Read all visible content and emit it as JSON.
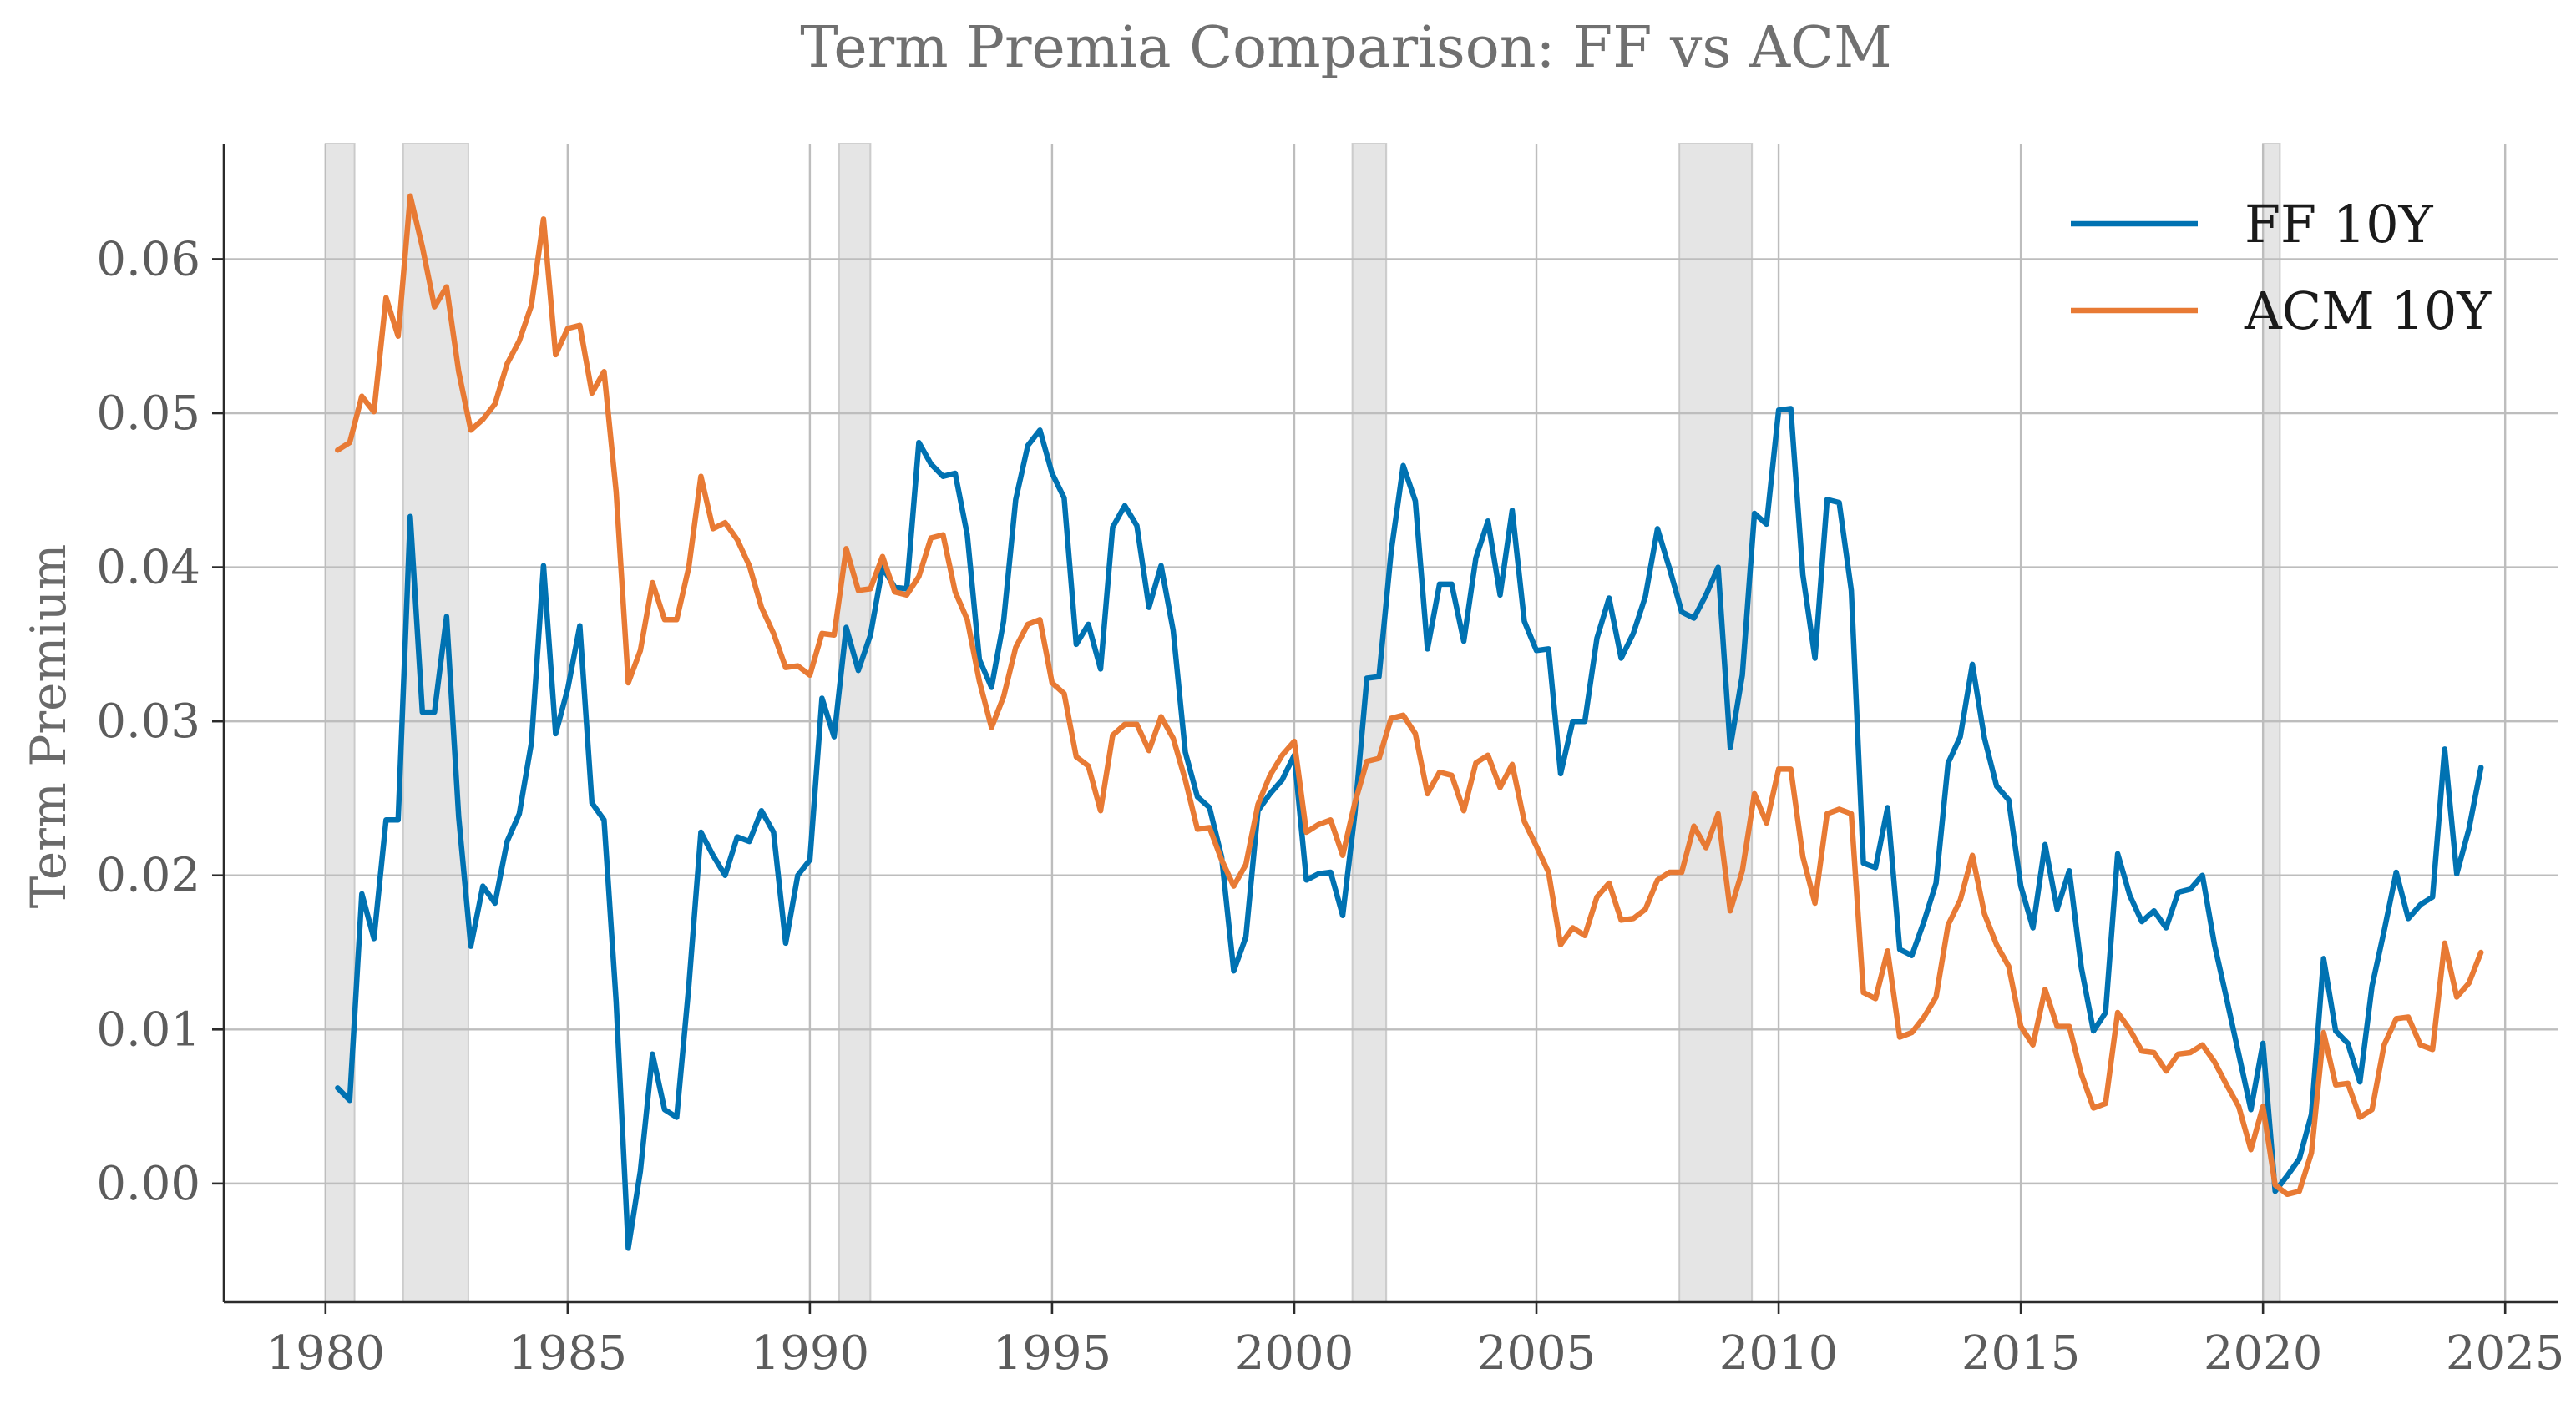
{
  "chart_data": {
    "type": "line",
    "title": "Term Premia Comparison: FF vs ACM",
    "xlabel": "",
    "ylabel": "Term Premium",
    "xlim": [
      1977.9,
      2026.1
    ],
    "ylim": [
      -0.0077,
      0.0675
    ],
    "x_ticks": [
      1980,
      1985,
      1990,
      1995,
      2000,
      2005,
      2010,
      2015,
      2020,
      2025
    ],
    "x_tick_labels": [
      "1980",
      "1985",
      "1990",
      "1995",
      "2000",
      "2005",
      "2010",
      "2015",
      "2020",
      "2025"
    ],
    "y_ticks": [
      0.0,
      0.01,
      0.02,
      0.03,
      0.04,
      0.05,
      0.06
    ],
    "y_tick_labels": [
      "0.00",
      "0.01",
      "0.02",
      "0.03",
      "0.04",
      "0.05",
      "0.06"
    ],
    "grid": true,
    "legend_position": "top-right",
    "recessions": [
      [
        1980.0,
        1980.6
      ],
      [
        1981.6,
        1982.95
      ],
      [
        1990.6,
        1991.25
      ],
      [
        2001.2,
        2001.9
      ],
      [
        2007.95,
        2009.45
      ],
      [
        2020.0,
        2020.35
      ]
    ],
    "x": [
      1980.25,
      1980.5,
      1980.75,
      1981.0,
      1981.25,
      1981.5,
      1981.75,
      1982.0,
      1982.25,
      1982.5,
      1982.75,
      1983.0,
      1983.25,
      1983.5,
      1983.75,
      1984.0,
      1984.25,
      1984.5,
      1984.75,
      1985.0,
      1985.25,
      1985.5,
      1985.75,
      1986.0,
      1986.25,
      1986.5,
      1986.75,
      1987.0,
      1987.25,
      1987.5,
      1987.75,
      1988.0,
      1988.25,
      1988.5,
      1988.75,
      1989.0,
      1989.25,
      1989.5,
      1989.75,
      1990.0,
      1990.25,
      1990.5,
      1990.75,
      1991.0,
      1991.25,
      1991.5,
      1991.75,
      1992.0,
      1992.25,
      1992.5,
      1992.75,
      1993.0,
      1993.25,
      1993.5,
      1993.75,
      1994.0,
      1994.25,
      1994.5,
      1994.75,
      1995.0,
      1995.25,
      1995.5,
      1995.75,
      1996.0,
      1996.25,
      1996.5,
      1996.75,
      1997.0,
      1997.25,
      1997.5,
      1997.75,
      1998.0,
      1998.25,
      1998.5,
      1998.75,
      1999.0,
      1999.25,
      1999.5,
      1999.75,
      2000.0,
      2000.25,
      2000.5,
      2000.75,
      2001.0,
      2001.25,
      2001.5,
      2001.75,
      2002.0,
      2002.25,
      2002.5,
      2002.75,
      2003.0,
      2003.25,
      2003.5,
      2003.75,
      2004.0,
      2004.25,
      2004.5,
      2004.75,
      2005.0,
      2005.25,
      2005.5,
      2005.75,
      2006.0,
      2006.25,
      2006.5,
      2006.75,
      2007.0,
      2007.25,
      2007.5,
      2007.75,
      2008.0,
      2008.25,
      2008.5,
      2008.75,
      2009.0,
      2009.25,
      2009.5,
      2009.75,
      2010.0,
      2010.25,
      2010.5,
      2010.75,
      2011.0,
      2011.25,
      2011.5,
      2011.75,
      2012.0,
      2012.25,
      2012.5,
      2012.75,
      2013.0,
      2013.25,
      2013.5,
      2013.75,
      2014.0,
      2014.25,
      2014.5,
      2014.75,
      2015.0,
      2015.25,
      2015.5,
      2015.75,
      2016.0,
      2016.25,
      2016.5,
      2016.75,
      2017.0,
      2017.25,
      2017.5,
      2017.75,
      2018.0,
      2018.25,
      2018.5,
      2018.75,
      2019.0,
      2019.25,
      2019.5,
      2019.75,
      2020.0,
      2020.25,
      2020.5,
      2020.75,
      2021.0,
      2021.25,
      2021.5,
      2021.75,
      2022.0,
      2022.25,
      2022.5,
      2022.75,
      2023.0,
      2023.25,
      2023.5,
      2023.75,
      2024.0,
      2024.25,
      2024.5
    ],
    "series": [
      {
        "name": "FF 10Y",
        "color": "#0072b2",
        "values": [
          0.0062,
          0.0054,
          0.0188,
          0.0159,
          0.0236,
          0.0236,
          0.0433,
          0.0306,
          0.0306,
          0.0368,
          0.0238,
          0.0154,
          0.0193,
          0.0182,
          0.0222,
          0.024,
          0.0286,
          0.0401,
          0.0292,
          0.0321,
          0.0362,
          0.0247,
          0.0236,
          0.0118,
          -0.0042,
          0.0008,
          0.0084,
          0.0048,
          0.0043,
          0.0128,
          0.0228,
          0.0213,
          0.02,
          0.0225,
          0.0222,
          0.0242,
          0.0228,
          0.0156,
          0.02,
          0.021,
          0.0315,
          0.029,
          0.0361,
          0.0333,
          0.0356,
          0.04,
          0.0387,
          0.0386,
          0.0481,
          0.0467,
          0.0459,
          0.0461,
          0.0421,
          0.034,
          0.0322,
          0.0365,
          0.0444,
          0.0479,
          0.0489,
          0.0461,
          0.0445,
          0.035,
          0.0363,
          0.0334,
          0.0426,
          0.044,
          0.0427,
          0.0374,
          0.0401,
          0.0359,
          0.028,
          0.0251,
          0.0244,
          0.0212,
          0.0138,
          0.016,
          0.0242,
          0.0253,
          0.0262,
          0.0278,
          0.0197,
          0.0201,
          0.0202,
          0.0174,
          0.024,
          0.0328,
          0.0329,
          0.041,
          0.0466,
          0.0443,
          0.0347,
          0.0389,
          0.0389,
          0.0352,
          0.0406,
          0.043,
          0.0382,
          0.0437,
          0.0365,
          0.0346,
          0.0347,
          0.0266,
          0.03,
          0.03,
          0.0354,
          0.038,
          0.0341,
          0.0357,
          0.0381,
          0.0425,
          0.0399,
          0.0371,
          0.0367,
          0.0382,
          0.04,
          0.0283,
          0.033,
          0.0435,
          0.0428,
          0.0502,
          0.0503,
          0.0395,
          0.0341,
          0.0444,
          0.0442,
          0.0385,
          0.0208,
          0.0205,
          0.0244,
          0.0152,
          0.0148,
          0.017,
          0.0195,
          0.0273,
          0.029,
          0.0337,
          0.0289,
          0.0258,
          0.0249,
          0.0193,
          0.0166,
          0.022,
          0.0178,
          0.0203,
          0.014,
          0.0099,
          0.0111,
          0.0214,
          0.0187,
          0.017,
          0.0177,
          0.0166,
          0.0189,
          0.0191,
          0.02,
          0.0155,
          0.012,
          0.0084,
          0.0048,
          0.0091,
          -0.0005,
          0.0005,
          0.0016,
          0.0045,
          0.0146,
          0.0099,
          0.0091,
          0.0066,
          0.0128,
          0.0164,
          0.0202,
          0.0172,
          0.0181,
          0.0186,
          0.0282,
          0.0201,
          0.023,
          0.027
        ]
      },
      {
        "name": "ACM 10Y",
        "color": "#e87a34",
        "values": [
          0.0476,
          0.0481,
          0.0511,
          0.0501,
          0.0575,
          0.055,
          0.0641,
          0.0608,
          0.0569,
          0.0582,
          0.0527,
          0.0489,
          0.0496,
          0.0506,
          0.0532,
          0.0547,
          0.057,
          0.0626,
          0.0538,
          0.0555,
          0.0557,
          0.0513,
          0.0527,
          0.0449,
          0.0325,
          0.0346,
          0.039,
          0.0366,
          0.0366,
          0.04,
          0.0459,
          0.0425,
          0.0429,
          0.0418,
          0.0401,
          0.0374,
          0.0357,
          0.0335,
          0.0336,
          0.033,
          0.0357,
          0.0356,
          0.0412,
          0.0385,
          0.0386,
          0.0407,
          0.0384,
          0.0382,
          0.0394,
          0.0419,
          0.0421,
          0.0384,
          0.0366,
          0.0326,
          0.0296,
          0.0316,
          0.0348,
          0.0363,
          0.0366,
          0.0325,
          0.0318,
          0.0277,
          0.0271,
          0.0242,
          0.0291,
          0.0298,
          0.0298,
          0.0281,
          0.0303,
          0.0289,
          0.0262,
          0.023,
          0.0231,
          0.021,
          0.0193,
          0.0207,
          0.0246,
          0.0265,
          0.0278,
          0.0287,
          0.0228,
          0.0233,
          0.0236,
          0.0213,
          0.0247,
          0.0274,
          0.0276,
          0.0302,
          0.0304,
          0.0292,
          0.0253,
          0.0267,
          0.0265,
          0.0242,
          0.0273,
          0.0278,
          0.0257,
          0.0272,
          0.0235,
          0.0219,
          0.0202,
          0.0155,
          0.0166,
          0.0161,
          0.0186,
          0.0195,
          0.0171,
          0.0172,
          0.0178,
          0.0197,
          0.0202,
          0.0202,
          0.0232,
          0.0218,
          0.024,
          0.0177,
          0.0203,
          0.0253,
          0.0234,
          0.0269,
          0.0269,
          0.0212,
          0.0182,
          0.024,
          0.0243,
          0.024,
          0.0124,
          0.012,
          0.0151,
          0.0095,
          0.0098,
          0.0108,
          0.0121,
          0.0168,
          0.0184,
          0.0213,
          0.0175,
          0.0155,
          0.0141,
          0.0102,
          0.009,
          0.0126,
          0.0102,
          0.0102,
          0.0071,
          0.0049,
          0.0052,
          0.0111,
          0.01,
          0.0086,
          0.0085,
          0.0073,
          0.0084,
          0.0085,
          0.009,
          0.0079,
          0.0064,
          0.005,
          0.0022,
          0.005,
          -0.0001,
          -0.0007,
          -0.0005,
          0.002,
          0.0098,
          0.0064,
          0.0065,
          0.0043,
          0.0048,
          0.009,
          0.0107,
          0.0108,
          0.009,
          0.0087,
          0.0156,
          0.0121,
          0.013,
          0.015
        ]
      }
    ]
  }
}
